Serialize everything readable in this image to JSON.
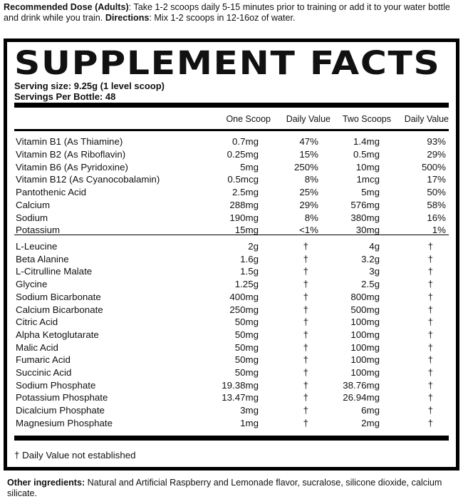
{
  "top_note": {
    "dose_label": "Recommended Dose (Adults)",
    "dose_text": ": Take 1-2 scoops daily 5-15 minutes prior to training or add it to your water bottle and drink while you train. ",
    "directions_label": "Directions",
    "directions_text": ": Mix 1-2 scoops in 12-16oz of water."
  },
  "panel": {
    "title": "SUPPLEMENT FACTS",
    "serving_size": "Serving size: 9.25g (1 level scoop)",
    "servings_per_bottle": "Servings Per Bottle: 48",
    "headers": {
      "one_scoop": "One Scoop",
      "daily_value_1": "Daily Value",
      "two_scoops": "Two Scoops",
      "daily_value_2": "Daily Value"
    },
    "vitamins": [
      {
        "name": "Vitamin B1 (As Thiamine)",
        "one": "0.7mg",
        "dv1": "47%",
        "two": "1.4mg",
        "dv2": "93%"
      },
      {
        "name": "Vitamin B2 (As Riboflavin)",
        "one": "0.25mg",
        "dv1": "15%",
        "two": "0.5mg",
        "dv2": "29%"
      },
      {
        "name": "Vitamin B6 (As Pyridoxine)",
        "one": "5mg",
        "dv1": "250%",
        "two": "10mg",
        "dv2": "500%"
      },
      {
        "name": "Vitamin B12 (As Cyanocobalamin)",
        "one": "0.5mcg",
        "dv1": "8%",
        "two": "1mcg",
        "dv2": "17%"
      },
      {
        "name": "Pantothenic Acid",
        "one": "2.5mg",
        "dv1": "25%",
        "two": "5mg",
        "dv2": "50%"
      },
      {
        "name": "Calcium",
        "one": "288mg",
        "dv1": "29%",
        "two": "576mg",
        "dv2": "58%"
      },
      {
        "name": "Sodium",
        "one": "190mg",
        "dv1": "8%",
        "two": "380mg",
        "dv2": "16%"
      },
      {
        "name": "Potassium",
        "one": "15mg",
        "dv1": "<1%",
        "two": "30mg",
        "dv2": "1%"
      }
    ],
    "other": [
      {
        "name": "L-Leucine",
        "one": "2g",
        "dv1": "†",
        "two": "4g",
        "dv2": "†"
      },
      {
        "name": "Beta Alanine",
        "one": "1.6g",
        "dv1": "†",
        "two": "3.2g",
        "dv2": "†"
      },
      {
        "name": "L-Citrulline Malate",
        "one": "1.5g",
        "dv1": "†",
        "two": "3g",
        "dv2": "†"
      },
      {
        "name": "Glycine",
        "one": "1.25g",
        "dv1": "†",
        "two": "2.5g",
        "dv2": "†"
      },
      {
        "name": "Sodium Bicarbonate",
        "one": "400mg",
        "dv1": "†",
        "two": "800mg",
        "dv2": "†"
      },
      {
        "name": "Calcium Bicarbonate",
        "one": "250mg",
        "dv1": "†",
        "two": "500mg",
        "dv2": "†"
      },
      {
        "name": "Citric Acid",
        "one": "50mg",
        "dv1": "†",
        "two": "100mg",
        "dv2": "†"
      },
      {
        "name": "Alpha Ketoglutarate",
        "one": "50mg",
        "dv1": "†",
        "two": "100mg",
        "dv2": "†"
      },
      {
        "name": "Malic Acid",
        "one": "50mg",
        "dv1": "†",
        "two": "100mg",
        "dv2": "†"
      },
      {
        "name": "Fumaric Acid",
        "one": "50mg",
        "dv1": "†",
        "two": "100mg",
        "dv2": "†"
      },
      {
        "name": "Succinic Acid",
        "one": "50mg",
        "dv1": "†",
        "two": "100mg",
        "dv2": "†"
      },
      {
        "name": "Sodium Phosphate",
        "one": "19.38mg",
        "dv1": "†",
        "two": "38.76mg",
        "dv2": "†"
      },
      {
        "name": "Potassium Phosphate",
        "one": "13.47mg",
        "dv1": "†",
        "two": "26.94mg",
        "dv2": "†"
      },
      {
        "name": "Dicalcium Phosphate",
        "one": "3mg",
        "dv1": "†",
        "two": "6mg",
        "dv2": "†"
      },
      {
        "name": "Magnesium Phosphate",
        "one": "1mg",
        "dv1": "†",
        "two": "2mg",
        "dv2": "†"
      }
    ],
    "footnote": "† Daily Value not established"
  },
  "other_ingredients": {
    "label": "Other ingredients:",
    "text": " Natural and Artificial Raspberry and Lemonade flavor, sucralose, silicone dioxide, calcium silicate."
  }
}
